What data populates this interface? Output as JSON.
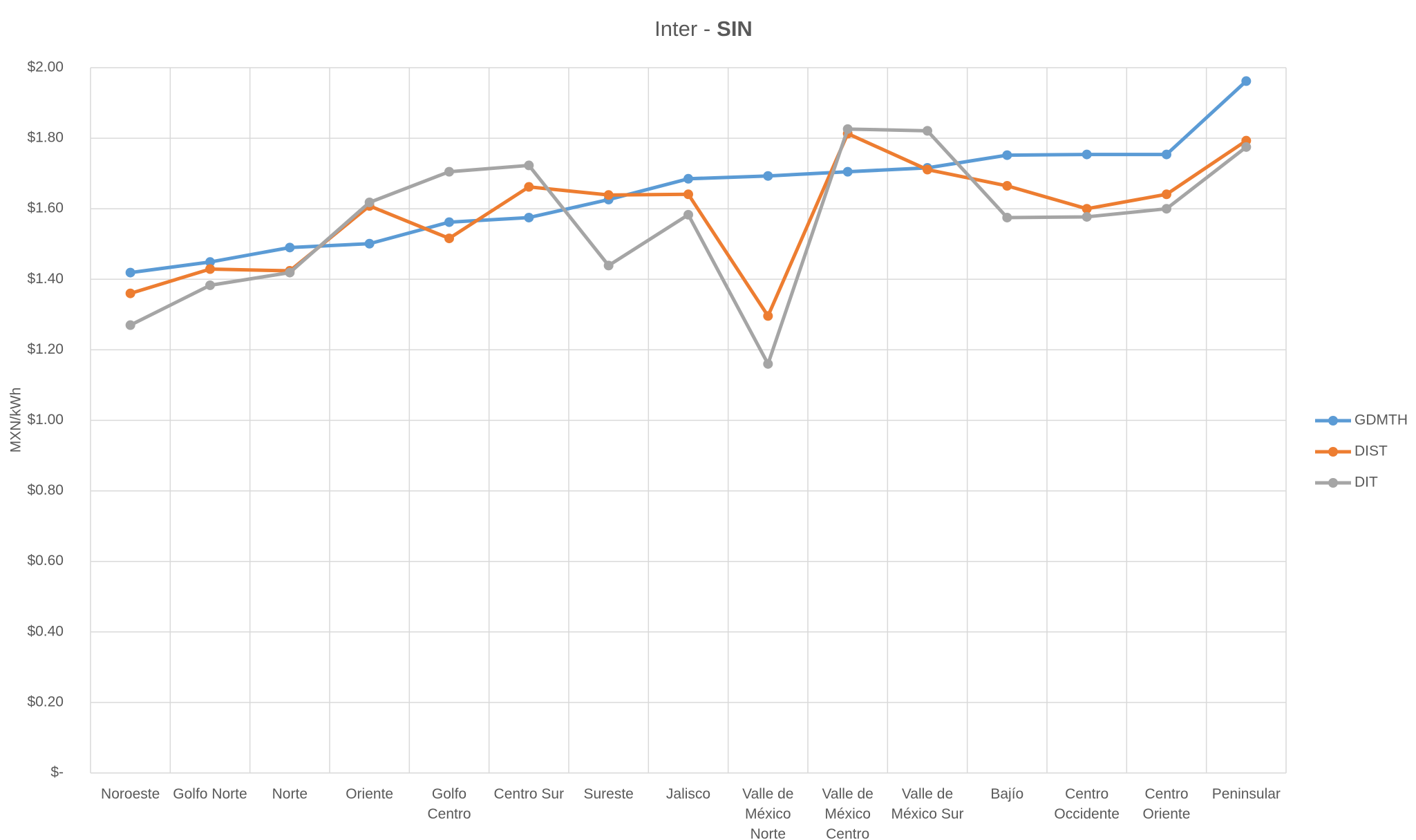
{
  "chart_data": {
    "type": "line",
    "title": "Inter -",
    "title_emphasis": "SIN",
    "y_label": "MXN/kWh",
    "categories": [
      "Noroeste",
      "Golfo Norte",
      "Norte",
      "Oriente",
      "Golfo Centro",
      "Centro Sur",
      "Sureste",
      "Jalisco",
      "Valle de México Norte",
      "Valle de México Centro",
      "Valle de México Sur",
      "Bajío",
      "Centro Occidente",
      "Centro Oriente",
      "Peninsular"
    ],
    "series": [
      {
        "name": "GDMTH",
        "color": "#5b9bd5",
        "values": [
          1.419,
          1.449,
          1.49,
          1.501,
          1.562,
          1.575,
          1.626,
          1.685,
          1.693,
          1.705,
          1.716,
          1.752,
          1.754,
          1.754,
          1.962
        ]
      },
      {
        "name": "DIST",
        "color": "#ed7d31",
        "values": [
          1.36,
          1.429,
          1.424,
          1.608,
          1.516,
          1.662,
          1.639,
          1.641,
          1.296,
          1.813,
          1.711,
          1.665,
          1.6,
          1.641,
          1.793
        ]
      },
      {
        "name": "DIT",
        "color": "#a5a5a5",
        "values": [
          1.27,
          1.383,
          1.419,
          1.618,
          1.705,
          1.723,
          1.439,
          1.583,
          1.16,
          1.826,
          1.821,
          1.575,
          1.577,
          1.6,
          1.775
        ]
      }
    ],
    "ylim": [
      0,
      2
    ],
    "yticks": [
      {
        "value": 0,
        "label": "$-"
      },
      {
        "value": 0.2,
        "label": "$0.20"
      },
      {
        "value": 0.4,
        "label": "$0.40"
      },
      {
        "value": 0.6,
        "label": "$0.60"
      },
      {
        "value": 0.8,
        "label": "$0.80"
      },
      {
        "value": 1,
        "label": "$1.00"
      },
      {
        "value": 1.2,
        "label": "$1.20"
      },
      {
        "value": 1.4,
        "label": "$1.40"
      },
      {
        "value": 1.6,
        "label": "$1.60"
      },
      {
        "value": 1.8,
        "label": "$1.80"
      },
      {
        "value": 2,
        "label": "$2.00"
      }
    ],
    "grid": true,
    "legend": "right"
  }
}
